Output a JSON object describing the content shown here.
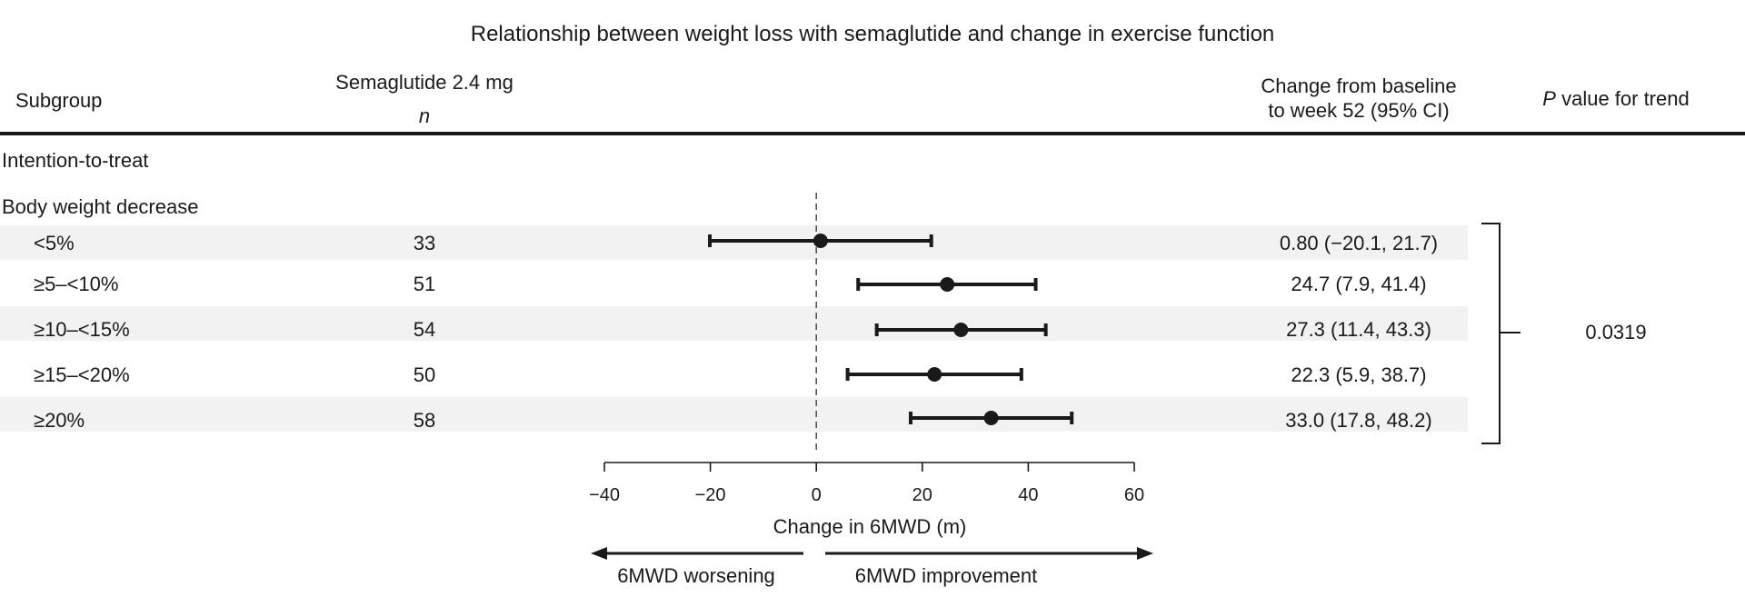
{
  "chart_data": {
    "type": "forest",
    "title": "Relationship between weight loss with semaglutide and change in exercise function",
    "headers": {
      "subgroup": "Subgroup",
      "treatment": "Semaglutide 2.4 mg",
      "n": "n",
      "estimate_line1": "Change from baseline",
      "estimate_line2": "to week 52 (95% CI)",
      "p_italic": "P",
      "p_rest": " value for trend"
    },
    "section": "Intention-to-treat",
    "subsection": "Body weight decrease",
    "rows": [
      {
        "label": "<5%",
        "n": "33",
        "est": 0.8,
        "lo": -20.1,
        "hi": 21.7,
        "text": "0.80 (−20.1, 21.7)"
      },
      {
        "label": "≥5–<10%",
        "n": "51",
        "est": 24.7,
        "lo": 7.9,
        "hi": 41.4,
        "text": "24.7 (7.9, 41.4)"
      },
      {
        "label": "≥10–<15%",
        "n": "54",
        "est": 27.3,
        "lo": 11.4,
        "hi": 43.3,
        "text": "27.3 (11.4, 43.3)"
      },
      {
        "label": "≥15–<20%",
        "n": "50",
        "est": 22.3,
        "lo": 5.9,
        "hi": 38.7,
        "text": "22.3 (5.9, 38.7)"
      },
      {
        "label": "≥20%",
        "n": "58",
        "est": 33.0,
        "lo": 17.8,
        "hi": 48.2,
        "text": "33.0 (17.8, 48.2)"
      }
    ],
    "p_value": "0.0319",
    "xaxis": {
      "label": "Change in 6MWD (m)",
      "xlim": [
        -40,
        60
      ],
      "ticks": [
        -40,
        -20,
        0,
        20,
        40,
        60
      ],
      "tick_labels": [
        "−40",
        "−20",
        "0",
        "20",
        "40",
        "60"
      ],
      "reference": 0
    },
    "direction": {
      "left": "6MWD worsening",
      "right": "6MWD improvement"
    }
  }
}
